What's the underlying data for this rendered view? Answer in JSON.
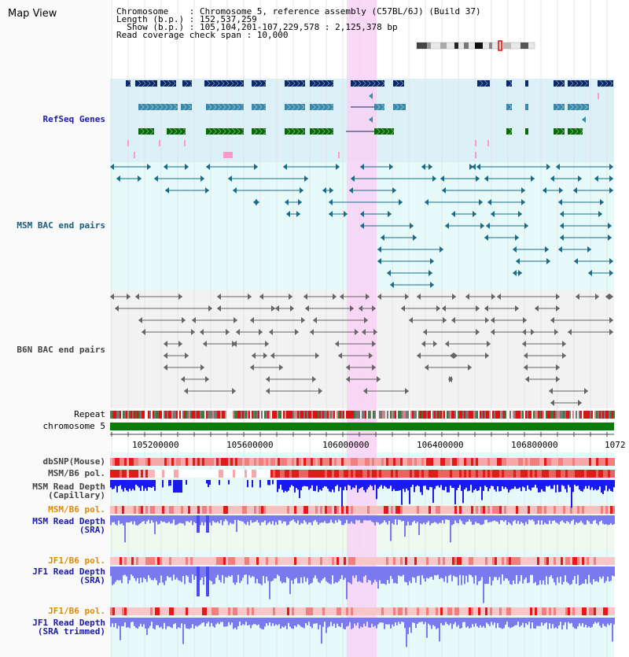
{
  "header": {
    "title": "Map View",
    "info_lines": [
      "Chromosome    : Chromosome 5, reference assembly (C57BL/6J) (Build 37)",
      "Length (b.p.) : 152,537,259",
      "  Show (b.p.) : 105,104,201-107,229,578 : 2,125,378 bp",
      "Read coverage check span : 10,000"
    ]
  },
  "tracks": {
    "refseq": "RefSeq Genes",
    "msm_bac": "MSM BAC end pairs",
    "b6n_bac": "B6N BAC end pairs",
    "repeat": "Repeat",
    "chromosome": "chromosome 5",
    "dbsnp": "dbSNP(Mouse)",
    "msm_b6_pol": "MSM/B6 pol.",
    "msm_depth_cap_1": "MSM Read Depth",
    "msm_depth_cap_2": "(Capillary)",
    "msm_b6_pol2": "MSM/B6 pol.",
    "msm_depth_sra_1": "MSM Read Depth",
    "msm_depth_sra_2": "(SRA)",
    "jf1_pol": "JF1/B6 pol.",
    "jf1_depth_1": "JF1 Read Depth",
    "jf1_depth_2": "(SRA)",
    "jf1_pol2": "JF1/B6 pol.",
    "jf1_trim_1": "JF1 Read Depth",
    "jf1_trim_2": "(SRA trimmed)"
  },
  "ruler": {
    "ticks": [
      "105200000",
      "105600000",
      "106000000",
      "106400000",
      "106800000",
      "1072"
    ]
  },
  "colors": {
    "refseq_bg": "#dcf0f8",
    "msm_bac_bg": "#e6fafa",
    "b6n_bac_bg": "#f2f2f2",
    "highlight": "#f8d2f4",
    "gene_dark": "#0a2a6a",
    "gene_mid": "#3a8aaa",
    "gene_green": "#0a6a0a",
    "bac_teal": "#1b6a88",
    "bac_gray": "#666666",
    "chrom_green": "#0a7a0a",
    "depth_blue": "#1a1aee",
    "depth_light": "#7a7aee",
    "snp_red": "#ee3333"
  }
}
